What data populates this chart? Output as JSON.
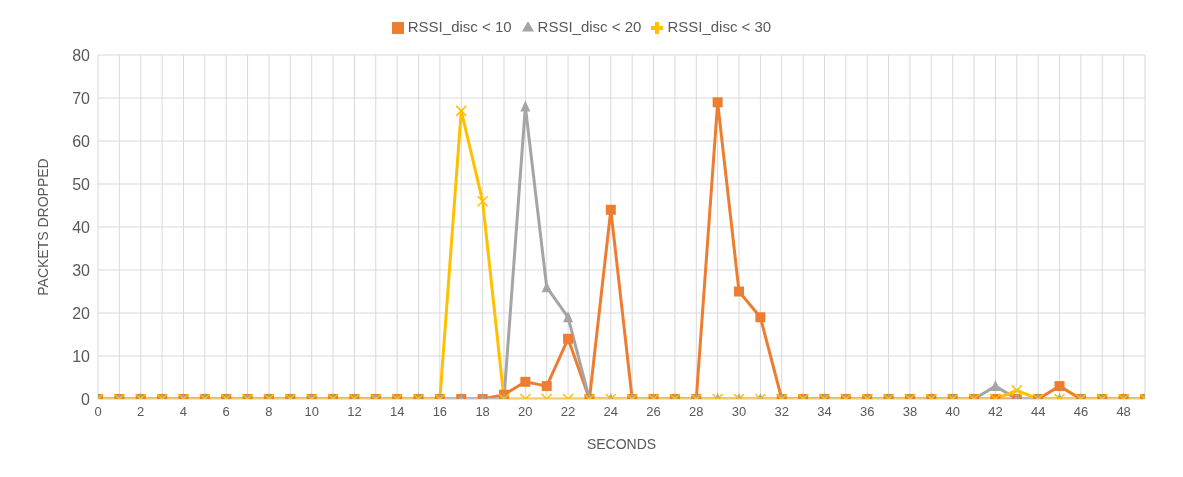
{
  "chart_data": {
    "type": "line",
    "xlabel": "SECONDS",
    "ylabel": "PACKETS DROPPED",
    "x": [
      0,
      1,
      2,
      3,
      4,
      5,
      6,
      7,
      8,
      9,
      10,
      11,
      12,
      13,
      14,
      15,
      16,
      17,
      18,
      19,
      20,
      21,
      22,
      23,
      24,
      25,
      26,
      27,
      28,
      29,
      30,
      31,
      32,
      33,
      34,
      35,
      36,
      37,
      38,
      39,
      40,
      41,
      42,
      43,
      44,
      45,
      46,
      47,
      48,
      49
    ],
    "series": [
      {
        "name": "RSSI_disc < 10",
        "color": "#ed7d31",
        "marker": "square",
        "values": [
          0,
          0,
          0,
          0,
          0,
          0,
          0,
          0,
          0,
          0,
          0,
          0,
          0,
          0,
          0,
          0,
          0,
          0,
          0,
          1,
          4,
          3,
          14,
          0,
          44,
          0,
          0,
          0,
          0,
          69,
          25,
          19,
          0,
          0,
          0,
          0,
          0,
          0,
          0,
          0,
          0,
          0,
          0,
          0,
          0,
          3,
          0,
          0,
          0,
          0
        ]
      },
      {
        "name": "RSSI_disc < 20",
        "color": "#a5a5a5",
        "marker": "triangle",
        "values": [
          0,
          0,
          0,
          0,
          0,
          0,
          0,
          0,
          0,
          0,
          0,
          0,
          0,
          0,
          0,
          0,
          0,
          0,
          0,
          0,
          68,
          26,
          19,
          0,
          0,
          0,
          0,
          0,
          0,
          0,
          0,
          0,
          0,
          0,
          0,
          0,
          0,
          0,
          0,
          0,
          0,
          0,
          3,
          0,
          0,
          0,
          0,
          0,
          0,
          0
        ]
      },
      {
        "name": "RSSI_disc < 30",
        "color": "#ffc000",
        "marker": "cross",
        "values": [
          0,
          0,
          0,
          0,
          0,
          0,
          0,
          0,
          0,
          0,
          0,
          0,
          0,
          0,
          0,
          0,
          0,
          67,
          46,
          0,
          0,
          0,
          0,
          0,
          0,
          0,
          0,
          0,
          0,
          0,
          0,
          0,
          0,
          0,
          0,
          0,
          0,
          0,
          0,
          0,
          0,
          0,
          0,
          2,
          0,
          0,
          0,
          0,
          0,
          0
        ]
      }
    ],
    "xlim": [
      0,
      49
    ],
    "xticks": [
      0,
      {
        "value": 1,
        "label": null
      },
      2,
      {
        "value": 3,
        "label": null
      },
      4,
      {
        "value": 5,
        "label": null
      },
      6,
      {
        "value": 7,
        "label": null
      },
      8,
      {
        "value": 9,
        "label": null
      },
      10,
      {
        "value": 11,
        "label": null
      },
      12,
      {
        "value": 13,
        "label": null
      },
      14,
      {
        "value": 15,
        "label": null
      },
      16,
      {
        "value": 17,
        "label": null
      },
      18,
      {
        "value": 19,
        "label": null
      },
      20,
      {
        "value": 21,
        "label": null
      },
      22,
      {
        "value": 23,
        "label": null
      },
      24,
      {
        "value": 25,
        "label": null
      },
      26,
      {
        "value": 27,
        "label": null
      },
      28,
      {
        "value": 29,
        "label": null
      },
      30,
      {
        "value": 31,
        "label": null
      },
      32,
      {
        "value": 33,
        "label": null
      },
      34,
      {
        "value": 35,
        "label": null
      },
      36,
      {
        "value": 37,
        "label": null
      },
      38,
      {
        "value": 39,
        "label": null
      },
      40,
      {
        "value": 41,
        "label": null
      },
      42,
      {
        "value": 43,
        "label": null
      },
      44,
      {
        "value": 45,
        "label": null
      },
      46,
      {
        "value": 47,
        "label": null
      },
      48,
      {
        "value": 49,
        "label": null
      }
    ],
    "ylim": [
      0,
      80
    ],
    "yticks": [
      0,
      10,
      20,
      30,
      40,
      50,
      60,
      70,
      80
    ],
    "grid": true,
    "legend": "top",
    "line_style": "solid"
  }
}
